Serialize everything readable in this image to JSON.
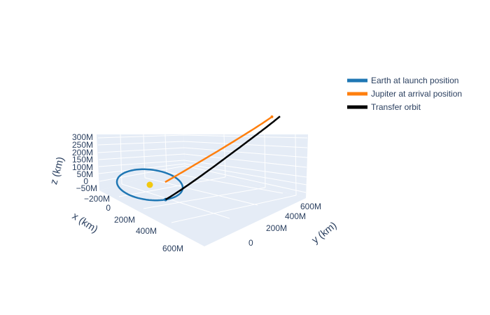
{
  "chart_data": {
    "type": "line3d",
    "title": "",
    "xlabel": "x (km)",
    "ylabel": "y (km)",
    "zlabel": "z (km)",
    "x_ticks": [
      "−200M",
      "0",
      "200M",
      "400M",
      "600M"
    ],
    "y_ticks": [
      "0",
      "200M",
      "400M",
      "600M"
    ],
    "z_ticks": [
      "300M",
      "250M",
      "200M",
      "150M",
      "100M",
      "50M",
      "0",
      "−50M"
    ],
    "legend_position": "top-right",
    "background_color": "#e5ecf6",
    "series": [
      {
        "name": "Earth at launch position",
        "color": "#1f77b4",
        "kind": "orbit",
        "center_km": [
          0,
          0,
          0
        ],
        "radius_km": 150000000
      },
      {
        "name": "Jupiter at arrival position",
        "color": "#ff7f0e",
        "kind": "arc",
        "center_km": [
          0,
          0,
          0
        ],
        "radius_km": 780000000,
        "arc_start_deg": 5,
        "arc_end_deg": 70
      },
      {
        "name": "Transfer orbit",
        "color": "#000000",
        "kind": "transfer",
        "start_km": [
          150000000,
          0,
          0
        ],
        "end_km": [
          30000000,
          600000000,
          300000000
        ]
      }
    ],
    "markers": [
      {
        "name": "Sun",
        "color": "#f2c80f",
        "position_km": [
          0,
          0,
          0
        ]
      }
    ]
  }
}
